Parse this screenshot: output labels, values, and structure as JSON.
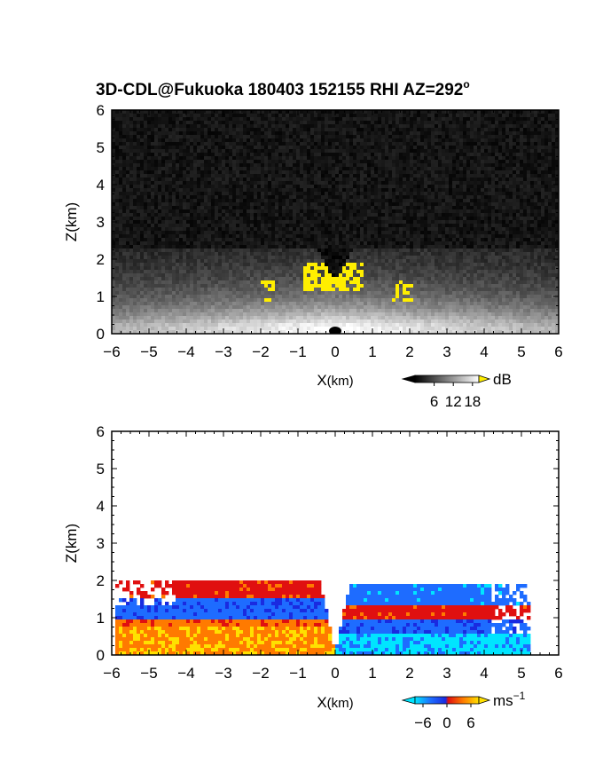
{
  "title": "3D-CDL@Fukuoka 180403 152155 RHI AZ=292",
  "title_degree": "o",
  "chart_data": [
    {
      "type": "heatmap",
      "name": "snr-rhi",
      "xlabel_main": "X",
      "xlabel_unit": "(km)",
      "ylabel": "Z(km)",
      "xlim": [
        -6,
        6
      ],
      "ylim": [
        0,
        6
      ],
      "xticks": [
        -6,
        -5,
        -4,
        -3,
        -2,
        -1,
        0,
        1,
        2,
        3,
        4,
        5,
        6
      ],
      "yticks": [
        0,
        1,
        2,
        3,
        4,
        5,
        6
      ],
      "colorbar": {
        "colormap": "grayscale",
        "unit": "dB",
        "ticks": [
          6,
          12,
          18
        ],
        "range": [
          0,
          20
        ],
        "overflow_color": "#ffee00"
      }
    },
    {
      "type": "heatmap",
      "name": "doppler-velocity-rhi",
      "xlabel_main": "X",
      "xlabel_unit": "(km)",
      "ylabel": "Z(km)",
      "xlim": [
        -6,
        6
      ],
      "ylim": [
        0,
        6
      ],
      "xticks": [
        -6,
        -5,
        -4,
        -3,
        -2,
        -1,
        0,
        1,
        2,
        3,
        4,
        5,
        6
      ],
      "yticks": [
        0,
        1,
        2,
        3,
        4,
        5,
        6
      ],
      "colorbar": {
        "colormap": "cyan-blue-red-yellow",
        "unit_main": "ms",
        "unit_exp": "−1",
        "ticks": [
          "−6",
          "0",
          "6"
        ],
        "range": [
          -8,
          8
        ],
        "colors": [
          "#00e5ff",
          "#1e6cff",
          "#1a2be0",
          "#e01010",
          "#ff7a00",
          "#ffe000"
        ]
      }
    }
  ]
}
